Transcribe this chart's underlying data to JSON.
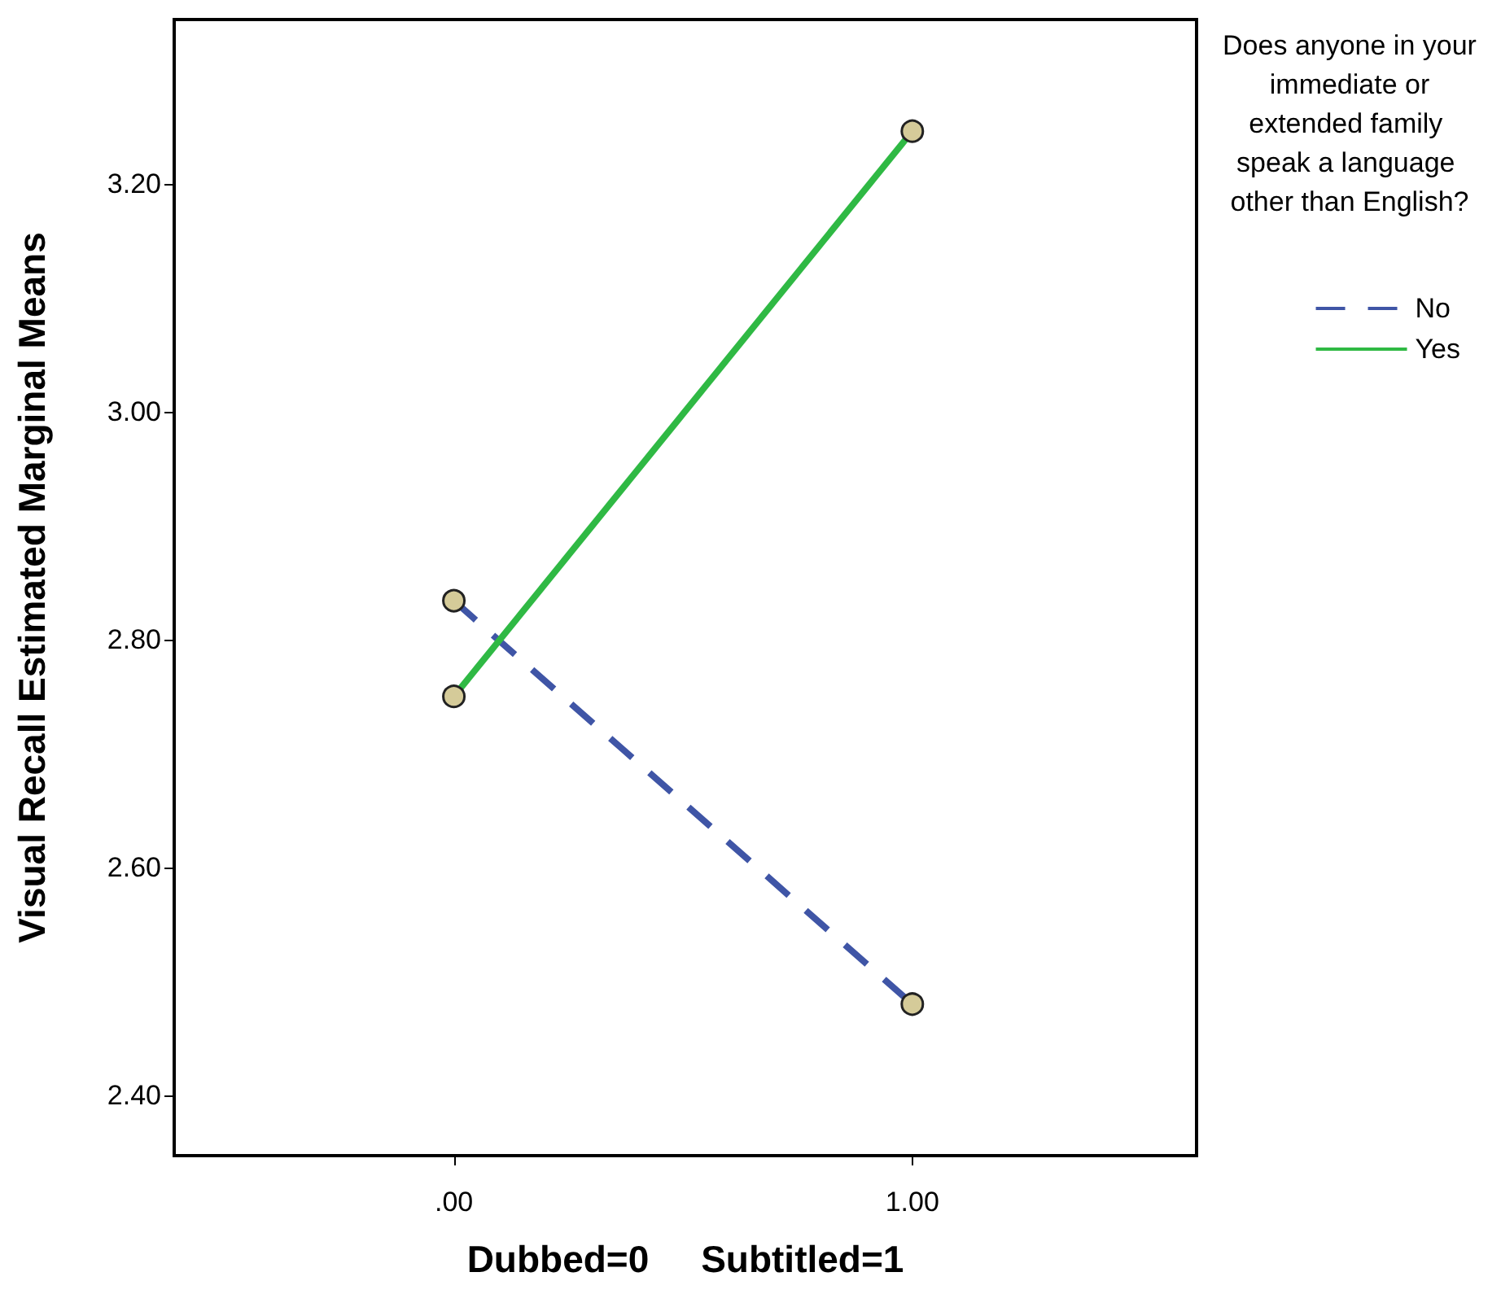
{
  "chart_data": {
    "type": "line",
    "xlabel": "Dubbed=0     Subtitled=1",
    "ylabel": "Visual Recall Estimated Marginal Means",
    "legend_title": "Does anyone in your immediate or extended family speak a language other than English?",
    "x": [
      0,
      1
    ],
    "series": [
      {
        "name": "No",
        "color": "#3f55a6",
        "values": [
          2.834,
          2.48
        ],
        "line_style": "dashed"
      },
      {
        "name": "Yes",
        "color": "#2fb944",
        "values": [
          2.75,
          3.246
        ],
        "line_style": "solid"
      }
    ],
    "xlim": [
      -0.61,
      1.62
    ],
    "xticks": [
      {
        "value": 0,
        "label": ".00"
      },
      {
        "value": 1,
        "label": "1.00"
      }
    ],
    "ylim": [
      2.347,
      3.344
    ],
    "yticks": [
      {
        "value": 2.4,
        "label": "2.40"
      },
      {
        "value": 2.6,
        "label": "2.60"
      },
      {
        "value": 2.8,
        "label": "2.80"
      },
      {
        "value": 3.0,
        "label": "3.00"
      },
      {
        "value": 3.2,
        "label": "3.20"
      }
    ],
    "grid": false,
    "legend": "right",
    "marker": "circle"
  }
}
